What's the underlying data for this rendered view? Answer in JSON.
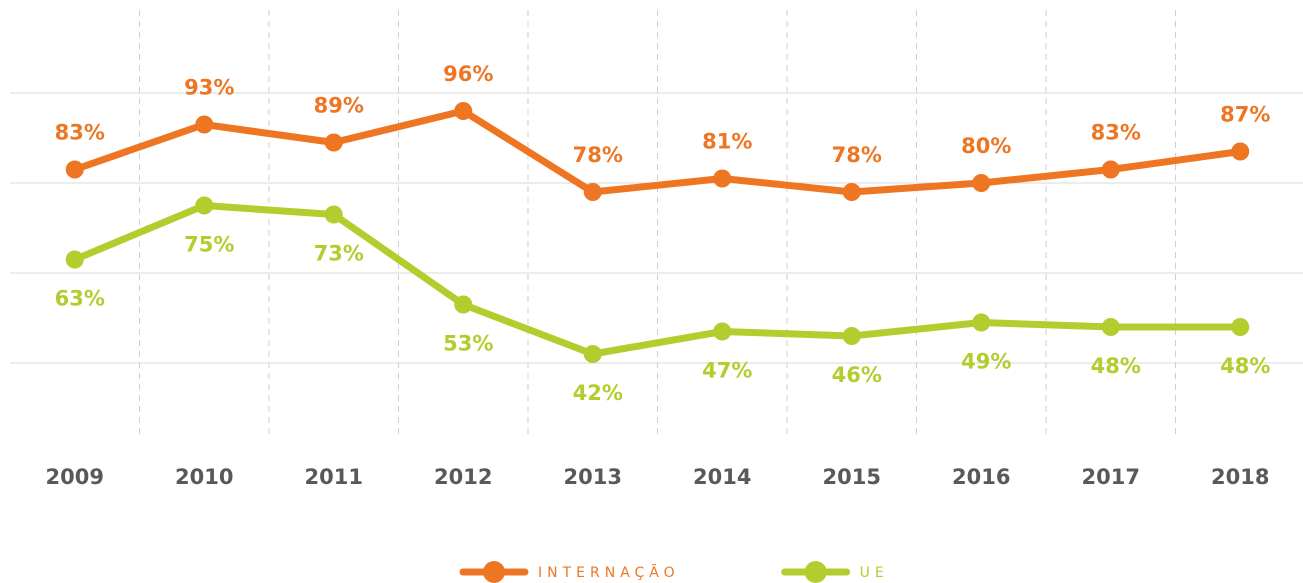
{
  "chart_data": {
    "type": "line",
    "categories": [
      "2009",
      "2010",
      "2011",
      "2012",
      "2013",
      "2014",
      "2015",
      "2016",
      "2017",
      "2018"
    ],
    "series": [
      {
        "name": "INTERNAÇÃO",
        "color": "#ee7623",
        "values": [
          83,
          93,
          89,
          96,
          78,
          81,
          78,
          80,
          83,
          87
        ],
        "value_labels": [
          "83%",
          "93%",
          "89%",
          "96%",
          "78%",
          "81%",
          "78%",
          "80%",
          "83%",
          "87%"
        ]
      },
      {
        "name": "UE",
        "color": "#b5cc2f",
        "values": [
          63,
          75,
          73,
          53,
          42,
          47,
          46,
          49,
          48,
          48
        ],
        "value_labels": [
          "63%",
          "75%",
          "73%",
          "53%",
          "42%",
          "47%",
          "46%",
          "49%",
          "48%",
          "48%"
        ]
      }
    ],
    "ylim": [
      20,
      120
    ],
    "yticks": [
      40,
      60,
      80,
      100
    ],
    "grid": true,
    "legend": "bottom"
  }
}
